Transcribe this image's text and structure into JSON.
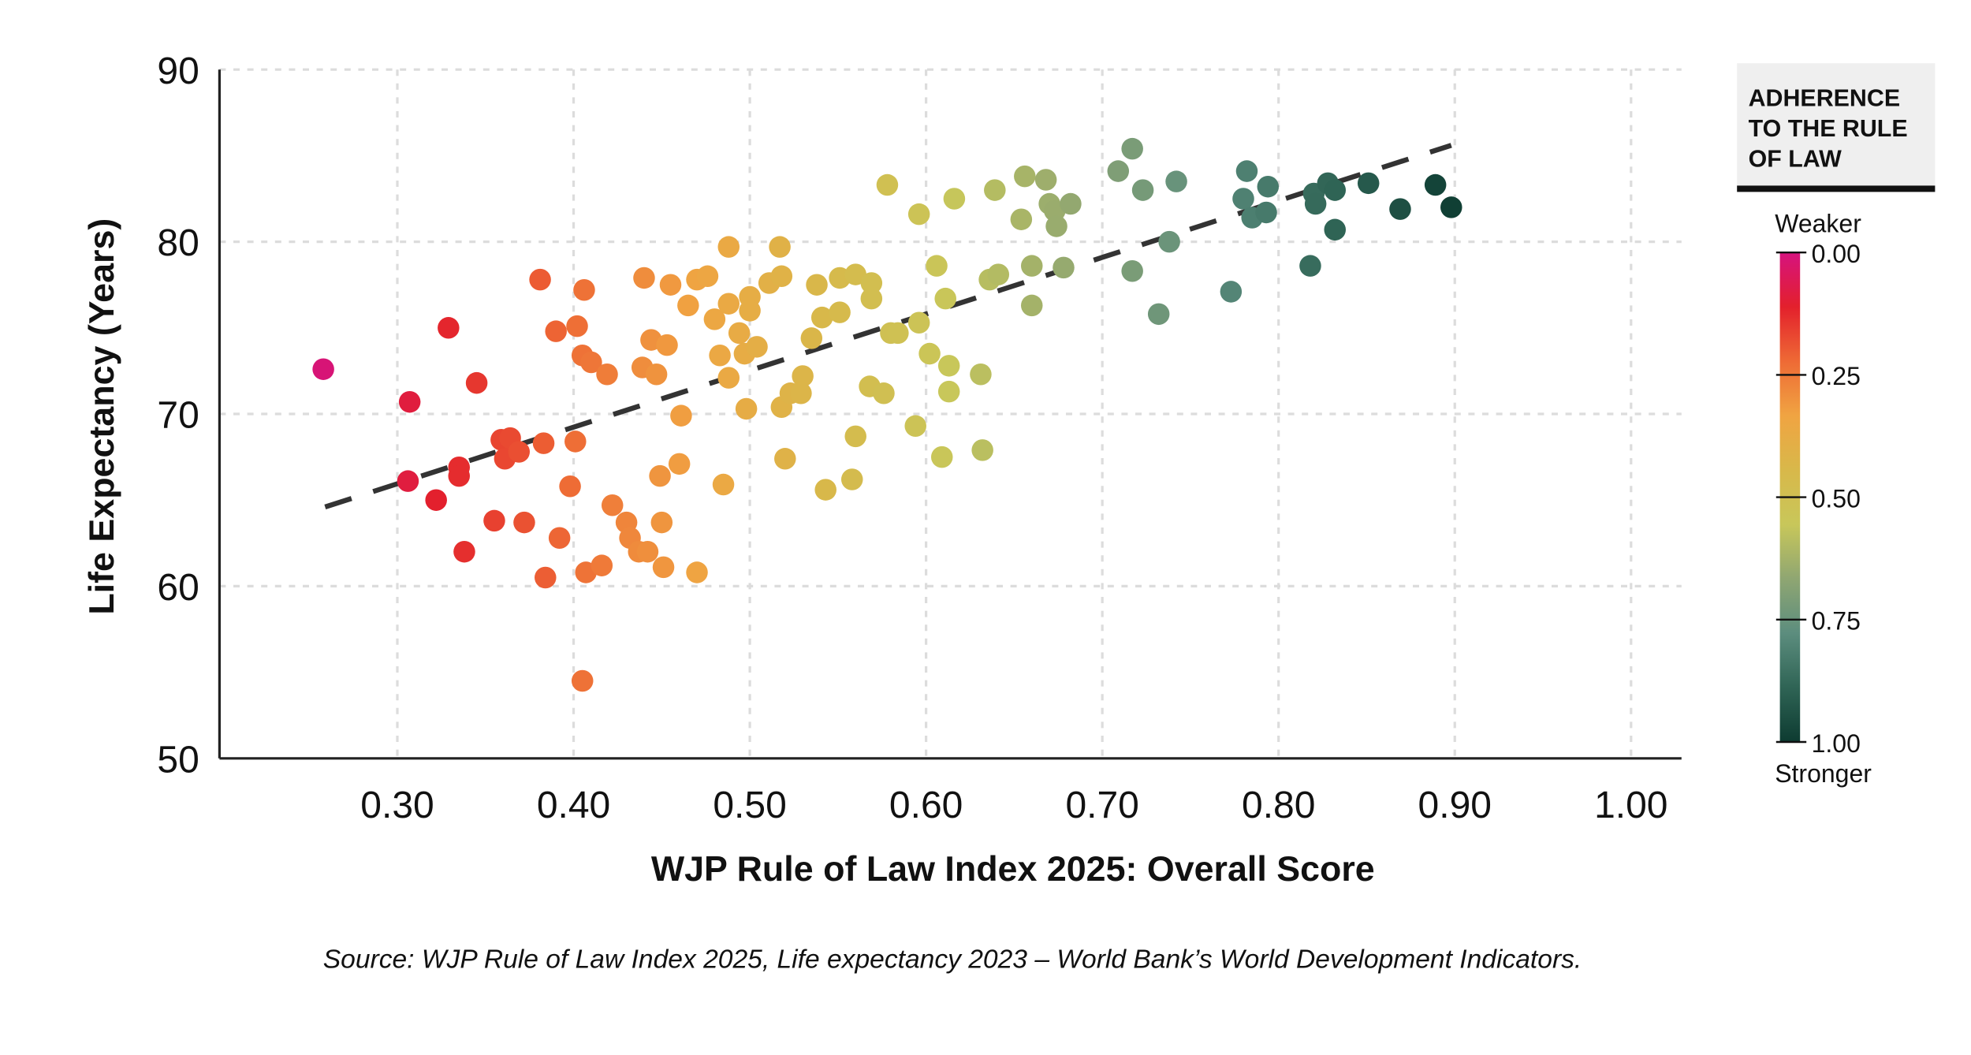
{
  "chart_data": {
    "type": "scatter",
    "xlabel": "WJP Rule of Law Index 2025: Overall Score",
    "ylabel": "Life Expectancy (Years)",
    "source": "Source: WJP Rule of Law Index 2025, Life expectancy 2023 – World Bank’s World Development Indicators.",
    "xlim": [
      0.2,
      1.03
    ],
    "ylim": [
      50,
      90
    ],
    "x_ticks": [
      "0.30",
      "0.40",
      "0.50",
      "0.60",
      "0.70",
      "0.80",
      "0.90",
      "1.00"
    ],
    "y_ticks": [
      "50",
      "60",
      "70",
      "80",
      "90"
    ],
    "grid": true,
    "trendline": {
      "style": "dashed",
      "color": "#333333",
      "from": [
        0.259,
        64.6
      ],
      "to": [
        0.898,
        85.6
      ]
    },
    "color_scale": {
      "title": "ADHERENCE TO THE RULE OF LAW",
      "top_label": "Weaker",
      "bottom_label": "Stronger",
      "ticks": [
        "0.00",
        "0.25",
        "0.50",
        "0.75",
        "1.00"
      ],
      "colors": [
        "#d6137f",
        "#e3202c",
        "#ee6a35",
        "#f0a442",
        "#d8b84a",
        "#c8c75a",
        "#8fa672",
        "#5c8d7e",
        "#2f6455",
        "#0d3b31"
      ]
    },
    "points": [
      [
        0.258,
        72.6
      ],
      [
        0.307,
        70.7
      ],
      [
        0.329,
        75.0
      ],
      [
        0.306,
        66.1
      ],
      [
        0.322,
        65.0
      ],
      [
        0.335,
        66.9
      ],
      [
        0.335,
        66.4
      ],
      [
        0.345,
        71.8
      ],
      [
        0.338,
        62.0
      ],
      [
        0.355,
        63.8
      ],
      [
        0.359,
        68.5
      ],
      [
        0.364,
        68.6
      ],
      [
        0.361,
        67.4
      ],
      [
        0.369,
        67.8
      ],
      [
        0.372,
        63.7
      ],
      [
        0.381,
        77.8
      ],
      [
        0.383,
        68.3
      ],
      [
        0.384,
        60.5
      ],
      [
        0.39,
        74.8
      ],
      [
        0.392,
        62.8
      ],
      [
        0.398,
        65.8
      ],
      [
        0.401,
        68.4
      ],
      [
        0.402,
        75.1
      ],
      [
        0.406,
        77.2
      ],
      [
        0.405,
        73.4
      ],
      [
        0.41,
        73.0
      ],
      [
        0.419,
        72.3
      ],
      [
        0.405,
        54.5
      ],
      [
        0.407,
        60.8
      ],
      [
        0.416,
        61.2
      ],
      [
        0.422,
        64.7
      ],
      [
        0.43,
        63.7
      ],
      [
        0.432,
        62.8
      ],
      [
        0.437,
        62.0
      ],
      [
        0.442,
        62.0
      ],
      [
        0.44,
        77.9
      ],
      [
        0.439,
        72.7
      ],
      [
        0.444,
        74.3
      ],
      [
        0.447,
        72.3
      ],
      [
        0.453,
        74.0
      ],
      [
        0.449,
        66.4
      ],
      [
        0.45,
        63.7
      ],
      [
        0.451,
        61.1
      ],
      [
        0.455,
        77.5
      ],
      [
        0.46,
        67.1
      ],
      [
        0.461,
        69.9
      ],
      [
        0.465,
        76.3
      ],
      [
        0.47,
        77.8
      ],
      [
        0.476,
        78.0
      ],
      [
        0.47,
        60.8
      ],
      [
        0.48,
        75.5
      ],
      [
        0.483,
        73.4
      ],
      [
        0.485,
        65.9
      ],
      [
        0.488,
        79.7
      ],
      [
        0.488,
        76.4
      ],
      [
        0.488,
        72.1
      ],
      [
        0.494,
        74.7
      ],
      [
        0.497,
        73.5
      ],
      [
        0.5,
        76.8
      ],
      [
        0.5,
        76.0
      ],
      [
        0.498,
        70.3
      ],
      [
        0.504,
        73.9
      ],
      [
        0.511,
        77.6
      ],
      [
        0.517,
        79.7
      ],
      [
        0.518,
        78.0
      ],
      [
        0.518,
        70.4
      ],
      [
        0.52,
        67.4
      ],
      [
        0.523,
        71.2
      ],
      [
        0.53,
        72.2
      ],
      [
        0.529,
        71.2
      ],
      [
        0.535,
        74.4
      ],
      [
        0.538,
        77.5
      ],
      [
        0.541,
        75.6
      ],
      [
        0.543,
        65.6
      ],
      [
        0.551,
        77.9
      ],
      [
        0.551,
        75.9
      ],
      [
        0.56,
        78.1
      ],
      [
        0.56,
        68.7
      ],
      [
        0.558,
        66.2
      ],
      [
        0.569,
        77.6
      ],
      [
        0.569,
        76.7
      ],
      [
        0.568,
        71.6
      ],
      [
        0.576,
        71.2
      ],
      [
        0.578,
        83.3
      ],
      [
        0.58,
        74.7
      ],
      [
        0.584,
        74.7
      ],
      [
        0.596,
        75.3
      ],
      [
        0.594,
        69.3
      ],
      [
        0.596,
        81.6
      ],
      [
        0.602,
        73.5
      ],
      [
        0.606,
        78.6
      ],
      [
        0.609,
        67.5
      ],
      [
        0.611,
        76.7
      ],
      [
        0.613,
        72.8
      ],
      [
        0.613,
        71.3
      ],
      [
        0.616,
        82.5
      ],
      [
        0.631,
        72.3
      ],
      [
        0.632,
        67.9
      ],
      [
        0.639,
        83.0
      ],
      [
        0.636,
        77.8
      ],
      [
        0.641,
        78.1
      ],
      [
        0.654,
        81.3
      ],
      [
        0.656,
        83.8
      ],
      [
        0.66,
        76.3
      ],
      [
        0.66,
        78.6
      ],
      [
        0.668,
        83.6
      ],
      [
        0.67,
        82.2
      ],
      [
        0.673,
        81.8
      ],
      [
        0.674,
        80.9
      ],
      [
        0.678,
        78.5
      ],
      [
        0.682,
        82.2
      ],
      [
        0.709,
        84.1
      ],
      [
        0.717,
        85.4
      ],
      [
        0.723,
        83.0
      ],
      [
        0.717,
        78.3
      ],
      [
        0.732,
        75.8
      ],
      [
        0.738,
        80.0
      ],
      [
        0.742,
        83.5
      ],
      [
        0.773,
        77.1
      ],
      [
        0.782,
        84.1
      ],
      [
        0.78,
        82.5
      ],
      [
        0.785,
        81.4
      ],
      [
        0.794,
        83.2
      ],
      [
        0.793,
        81.7
      ],
      [
        0.818,
        78.6
      ],
      [
        0.82,
        82.8
      ],
      [
        0.821,
        82.2
      ],
      [
        0.828,
        83.4
      ],
      [
        0.832,
        83.0
      ],
      [
        0.832,
        80.7
      ],
      [
        0.851,
        83.4
      ],
      [
        0.869,
        81.9
      ],
      [
        0.889,
        83.3
      ],
      [
        0.898,
        82.0
      ]
    ]
  }
}
